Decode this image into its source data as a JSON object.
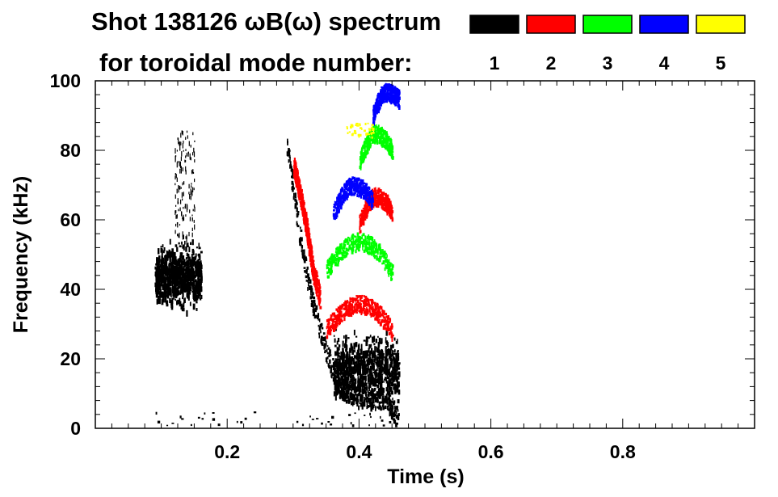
{
  "chart_data": {
    "type": "heatmap",
    "title_line1": "Shot 138126 ωB(ω) spectrum",
    "title_line2": "for toroidal mode number:",
    "xlabel": "Time (s)",
    "ylabel": "Frequency (kHz)",
    "xlim": [
      0.0,
      1.0
    ],
    "ylim": [
      0,
      100
    ],
    "xticks": [
      {
        "value": 0.2,
        "label": "0.2"
      },
      {
        "value": 0.4,
        "label": "0.4"
      },
      {
        "value": 0.6,
        "label": "0.6"
      },
      {
        "value": 0.8,
        "label": "0.8"
      }
    ],
    "yticks": [
      {
        "value": 0,
        "label": "0"
      },
      {
        "value": 20,
        "label": "20"
      },
      {
        "value": 40,
        "label": "40"
      },
      {
        "value": 60,
        "label": "60"
      },
      {
        "value": 80,
        "label": "80"
      },
      {
        "value": 100,
        "label": "100"
      }
    ],
    "legend": [
      {
        "mode": "1",
        "color": "#000000"
      },
      {
        "mode": "2",
        "color": "#ff0000"
      },
      {
        "mode": "3",
        "color": "#00ff00"
      },
      {
        "mode": "4",
        "color": "#0000ff"
      },
      {
        "mode": "5",
        "color": "#ffff00"
      }
    ],
    "features": [
      {
        "mode": "1",
        "shape": "blob",
        "t": [
          0.09,
          0.16
        ],
        "f": [
          33,
          56
        ]
      },
      {
        "mode": "1",
        "shape": "spikes",
        "t": [
          0.12,
          0.15
        ],
        "f": [
          55,
          86
        ]
      },
      {
        "mode": "1",
        "shape": "sweep",
        "points": [
          [
            0.29,
            82
          ],
          [
            0.31,
            55
          ],
          [
            0.33,
            35
          ],
          [
            0.35,
            22
          ],
          [
            0.37,
            12
          ],
          [
            0.4,
            9
          ],
          [
            0.44,
            9
          ],
          [
            0.46,
            3
          ]
        ]
      },
      {
        "mode": "1",
        "shape": "blob",
        "t": [
          0.36,
          0.46
        ],
        "f": [
          5,
          30
        ]
      },
      {
        "mode": "1",
        "shape": "dots",
        "t": [
          0.08,
          0.47
        ],
        "f": [
          1,
          5
        ]
      },
      {
        "mode": "2",
        "shape": "sweep",
        "points": [
          [
            0.3,
            76
          ],
          [
            0.31,
            68
          ],
          [
            0.32,
            58
          ],
          [
            0.33,
            45
          ],
          [
            0.34,
            38
          ]
        ]
      },
      {
        "mode": "2",
        "shape": "arc",
        "t": [
          0.35,
          0.45
        ],
        "f_center": 35,
        "f_peak": 36,
        "f_end": 28
      },
      {
        "mode": "2",
        "shape": "arc",
        "t": [
          0.4,
          0.45
        ],
        "f_center": 65,
        "f_peak": 67,
        "f_end": 62
      },
      {
        "mode": "3",
        "shape": "arc",
        "t": [
          0.35,
          0.45
        ],
        "f_center": 52,
        "f_peak": 54,
        "f_end": 45
      },
      {
        "mode": "3",
        "shape": "arc",
        "t": [
          0.4,
          0.45
        ],
        "f_center": 83,
        "f_peak": 85,
        "f_end": 80
      },
      {
        "mode": "4",
        "shape": "arc",
        "t": [
          0.36,
          0.42
        ],
        "f_center": 68,
        "f_peak": 70,
        "f_end": 66
      },
      {
        "mode": "4",
        "shape": "arc",
        "t": [
          0.42,
          0.46
        ],
        "f_center": 96,
        "f_peak": 97,
        "f_end": 95
      },
      {
        "mode": "5",
        "shape": "dots",
        "t": [
          0.38,
          0.42
        ],
        "f": [
          84,
          88
        ]
      }
    ]
  }
}
